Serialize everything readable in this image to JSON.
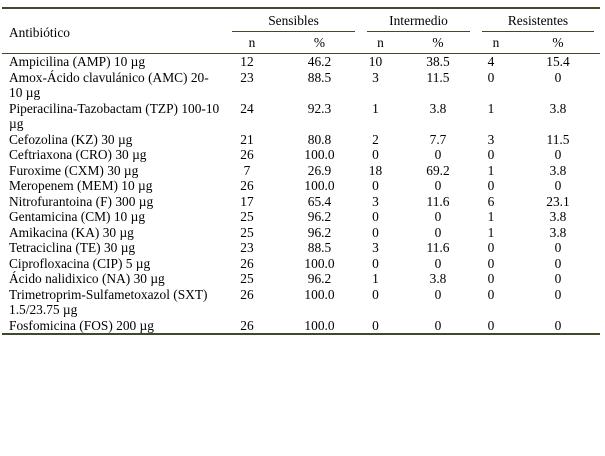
{
  "header": {
    "antibiotic": "Antibiótico",
    "groups": [
      "Sensibles",
      "Intermedio",
      "Resistentes"
    ],
    "n": "n",
    "pct": "%"
  },
  "rows": [
    {
      "name": "Ampicilina (AMP) 10 µg",
      "s_n": "12",
      "s_p": "46.2",
      "i_n": "10",
      "i_p": "38.5",
      "r_n": "4",
      "r_p": "15.4"
    },
    {
      "name": "Amox-Ácido clavulánico (AMC) 20-10 µg",
      "s_n": "23",
      "s_p": "88.5",
      "i_n": "3",
      "i_p": "11.5",
      "r_n": "0",
      "r_p": "0"
    },
    {
      "name": "Piperacilina-Tazobactam (TZP) 100-10 µg",
      "s_n": "24",
      "s_p": "92.3",
      "i_n": "1",
      "i_p": "3.8",
      "r_n": "1",
      "r_p": "3.8"
    },
    {
      "name": "Cefozolina (KZ) 30 µg",
      "s_n": "21",
      "s_p": "80.8",
      "i_n": "2",
      "i_p": "7.7",
      "r_n": "3",
      "r_p": "11.5"
    },
    {
      "name": "Ceftriaxona (CRO) 30 µg",
      "s_n": "26",
      "s_p": "100.0",
      "i_n": "0",
      "i_p": "0",
      "r_n": "0",
      "r_p": "0"
    },
    {
      "name": "Furoxime (CXM) 30 µg",
      "s_n": "7",
      "s_p": "26.9",
      "i_n": "18",
      "i_p": "69.2",
      "r_n": "1",
      "r_p": "3.8"
    },
    {
      "name": "Meropenem (MEM) 10 µg",
      "s_n": "26",
      "s_p": "100.0",
      "i_n": "0",
      "i_p": "0",
      "r_n": "0",
      "r_p": "0"
    },
    {
      "name": "Nitrofurantoina (F) 300 µg",
      "s_n": "17",
      "s_p": "65.4",
      "i_n": "3",
      "i_p": "11.6",
      "r_n": "6",
      "r_p": "23.1"
    },
    {
      "name": "Gentamicina (CM) 10 µg",
      "s_n": "25",
      "s_p": "96.2",
      "i_n": "0",
      "i_p": "0",
      "r_n": "1",
      "r_p": "3.8"
    },
    {
      "name": "Amikacina (KA) 30 µg",
      "s_n": "25",
      "s_p": "96.2",
      "i_n": "0",
      "i_p": "0",
      "r_n": "1",
      "r_p": "3.8"
    },
    {
      "name": "Tetraciclina (TE) 30 µg",
      "s_n": "23",
      "s_p": "88.5",
      "i_n": "3",
      "i_p": "11.6",
      "r_n": "0",
      "r_p": "0"
    },
    {
      "name": "Ciprofloxacina (CIP) 5 µg",
      "s_n": "26",
      "s_p": "100.0",
      "i_n": "0",
      "i_p": "0",
      "r_n": "0",
      "r_p": "0"
    },
    {
      "name": "Ácido nalidixico (NA) 30 µg",
      "s_n": "25",
      "s_p": "96.2",
      "i_n": "1",
      "i_p": "3.8",
      "r_n": "0",
      "r_p": "0"
    },
    {
      "name": "Trimetroprim-Sulfametoxazol (SXT) 1.5/23.75 µg",
      "s_n": "26",
      "s_p": "100.0",
      "i_n": "0",
      "i_p": "0",
      "r_n": "0",
      "r_p": "0"
    },
    {
      "name": "Fosfomicina (FOS) 200 µg",
      "s_n": "26",
      "s_p": "100.0",
      "i_n": "0",
      "i_p": "0",
      "r_n": "0",
      "r_p": "0"
    }
  ]
}
